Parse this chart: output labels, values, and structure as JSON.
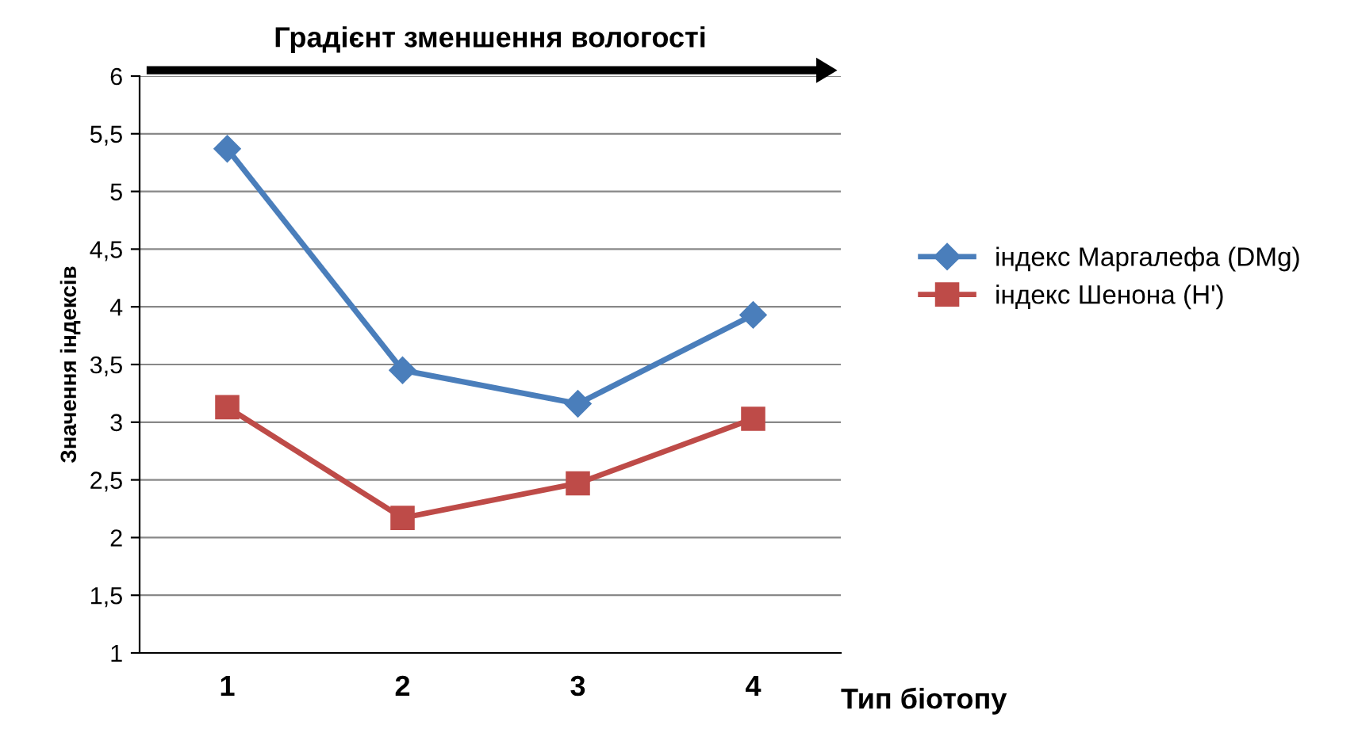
{
  "chart_data": {
    "type": "line",
    "title": "Градієнт зменшення вологості",
    "xlabel": "Тип біотопу",
    "ylabel": "Значення індексів",
    "categories": [
      "1",
      "2",
      "3",
      "4"
    ],
    "series": [
      {
        "name": "індекс Маргалефа (DMg)",
        "color": "#4a7ebb",
        "marker": "diamond",
        "values": [
          5.37,
          3.45,
          3.16,
          3.93
        ]
      },
      {
        "name": "індекс Шенона (H')",
        "color": "#be4b48",
        "marker": "square",
        "values": [
          3.13,
          2.17,
          2.47,
          3.03
        ]
      }
    ],
    "ylim": [
      1,
      6
    ],
    "yticks": [
      1,
      {
        "value": 1.5,
        "label": "1,5"
      },
      2,
      {
        "value": 2.5,
        "label": "2,5"
      },
      3,
      {
        "value": 3.5,
        "label": "3,5"
      },
      4,
      {
        "value": 4.5,
        "label": "4,5"
      },
      5,
      {
        "value": 5.5,
        "label": "5,5"
      },
      6
    ],
    "grid": "y",
    "legend": "right",
    "line_style": "solid"
  }
}
